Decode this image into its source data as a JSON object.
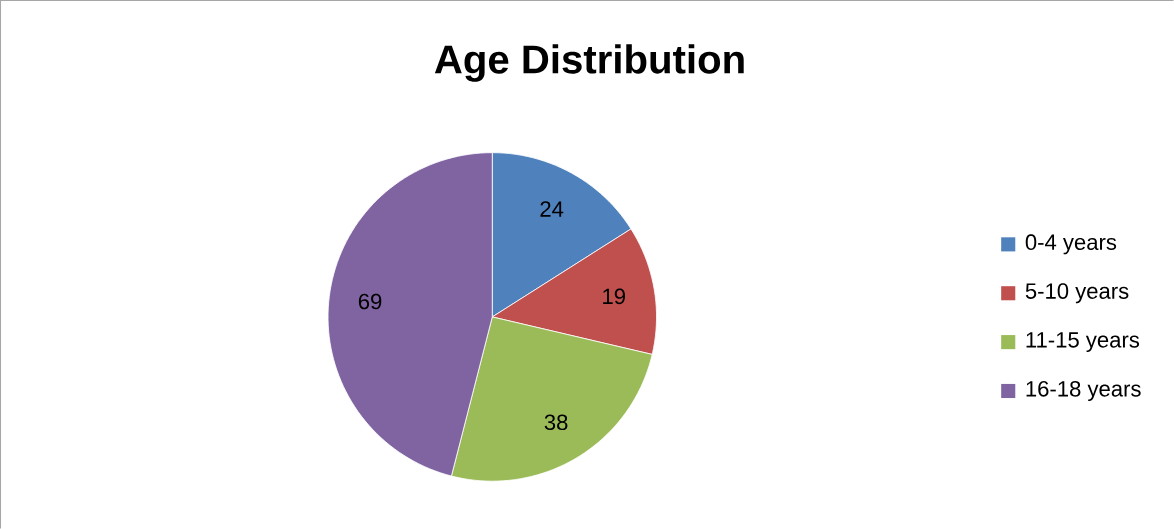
{
  "chart_data": {
    "type": "pie",
    "title": "Age Distribution",
    "categories": [
      "0-4 years",
      "5-10 years",
      "11-15 years",
      "16-18 years"
    ],
    "values": [
      24,
      19,
      38,
      69
    ],
    "colors": [
      "#4f81bd",
      "#c0504d",
      "#9bbb59",
      "#8064a2"
    ],
    "data_labels": true,
    "legend": "right"
  }
}
